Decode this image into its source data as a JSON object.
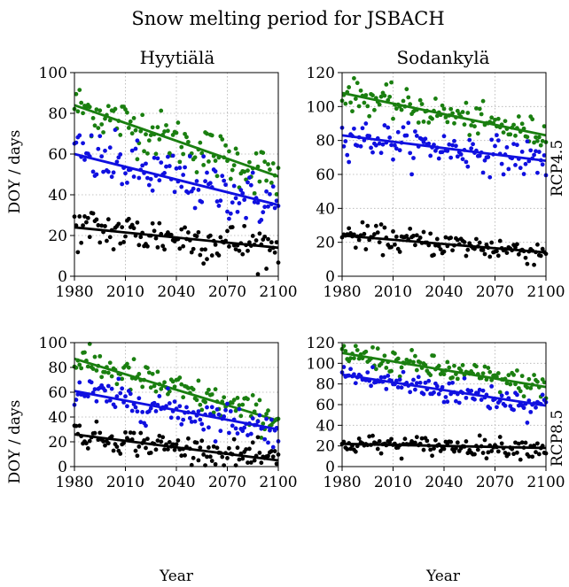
{
  "figure": {
    "title": "Snow melting period for JSBACH",
    "columns": [
      "Hyytiälä",
      "Sodankylä"
    ],
    "rows": [
      "RCP4.5",
      "RCP8.5"
    ],
    "xlabel": "Year",
    "ylabel": "DOY / days",
    "colors": {
      "green": "#1a7f10",
      "blue": "#1010e0",
      "black": "#000000"
    }
  },
  "chart_data": [
    {
      "type": "scatter",
      "site": "Hyytiälä",
      "scenario": "RCP4.5",
      "xlim": [
        1980,
        2100
      ],
      "ylim": [
        0,
        100
      ],
      "xticks": [
        1980,
        2010,
        2040,
        2070,
        2100
      ],
      "yticks": [
        0,
        20,
        40,
        60,
        80,
        100
      ],
      "grid": true,
      "series": [
        {
          "color": "green",
          "trend": [
            [
              1980,
              84
            ],
            [
              2100,
              49
            ]
          ],
          "spread": 8
        },
        {
          "color": "blue",
          "trend": [
            [
              1980,
              60
            ],
            [
              2100,
              35
            ]
          ],
          "spread": 9
        },
        {
          "color": "black",
          "trend": [
            [
              1980,
              24
            ],
            [
              2100,
              14
            ]
          ],
          "spread": 7
        }
      ]
    },
    {
      "type": "scatter",
      "site": "Sodankylä",
      "scenario": "RCP4.5",
      "xlim": [
        1980,
        2100
      ],
      "ylim": [
        0,
        120
      ],
      "xticks": [
        1980,
        2010,
        2040,
        2070,
        2100
      ],
      "yticks": [
        0,
        20,
        40,
        60,
        80,
        100,
        120
      ],
      "grid": true,
      "series": [
        {
          "color": "green",
          "trend": [
            [
              1980,
              108
            ],
            [
              2100,
              83
            ]
          ],
          "spread": 6
        },
        {
          "color": "blue",
          "trend": [
            [
              1980,
              83
            ],
            [
              2100,
              68
            ]
          ],
          "spread": 7
        },
        {
          "color": "black",
          "trend": [
            [
              1980,
              24
            ],
            [
              2100,
              14
            ]
          ],
          "spread": 5
        }
      ]
    },
    {
      "type": "scatter",
      "site": "Hyytiälä",
      "scenario": "RCP8.5",
      "xlim": [
        1980,
        2100
      ],
      "ylim": [
        0,
        100
      ],
      "xticks": [
        1980,
        2010,
        2040,
        2070,
        2100
      ],
      "yticks": [
        0,
        20,
        40,
        60,
        80,
        100
      ],
      "grid": true,
      "series": [
        {
          "color": "green",
          "trend": [
            [
              1980,
              87
            ],
            [
              2100,
              37
            ]
          ],
          "spread": 9
        },
        {
          "color": "blue",
          "trend": [
            [
              1980,
              61
            ],
            [
              2100,
              30
            ]
          ],
          "spread": 9
        },
        {
          "color": "black",
          "trend": [
            [
              1980,
              26
            ],
            [
              2100,
              5
            ]
          ],
          "spread": 7
        }
      ]
    },
    {
      "type": "scatter",
      "site": "Sodankylä",
      "scenario": "RCP8.5",
      "xlim": [
        1980,
        2100
      ],
      "ylim": [
        0,
        120
      ],
      "xticks": [
        1980,
        2010,
        2040,
        2070,
        2100
      ],
      "yticks": [
        0,
        20,
        40,
        60,
        80,
        100,
        120
      ],
      "grid": true,
      "series": [
        {
          "color": "green",
          "trend": [
            [
              1980,
              110
            ],
            [
              2100,
              77
            ]
          ],
          "spread": 8
        },
        {
          "color": "blue",
          "trend": [
            [
              1980,
              89
            ],
            [
              2100,
              59
            ]
          ],
          "spread": 9
        },
        {
          "color": "black",
          "trend": [
            [
              1980,
              22
            ],
            [
              2100,
              18
            ]
          ],
          "spread": 6
        }
      ]
    }
  ]
}
